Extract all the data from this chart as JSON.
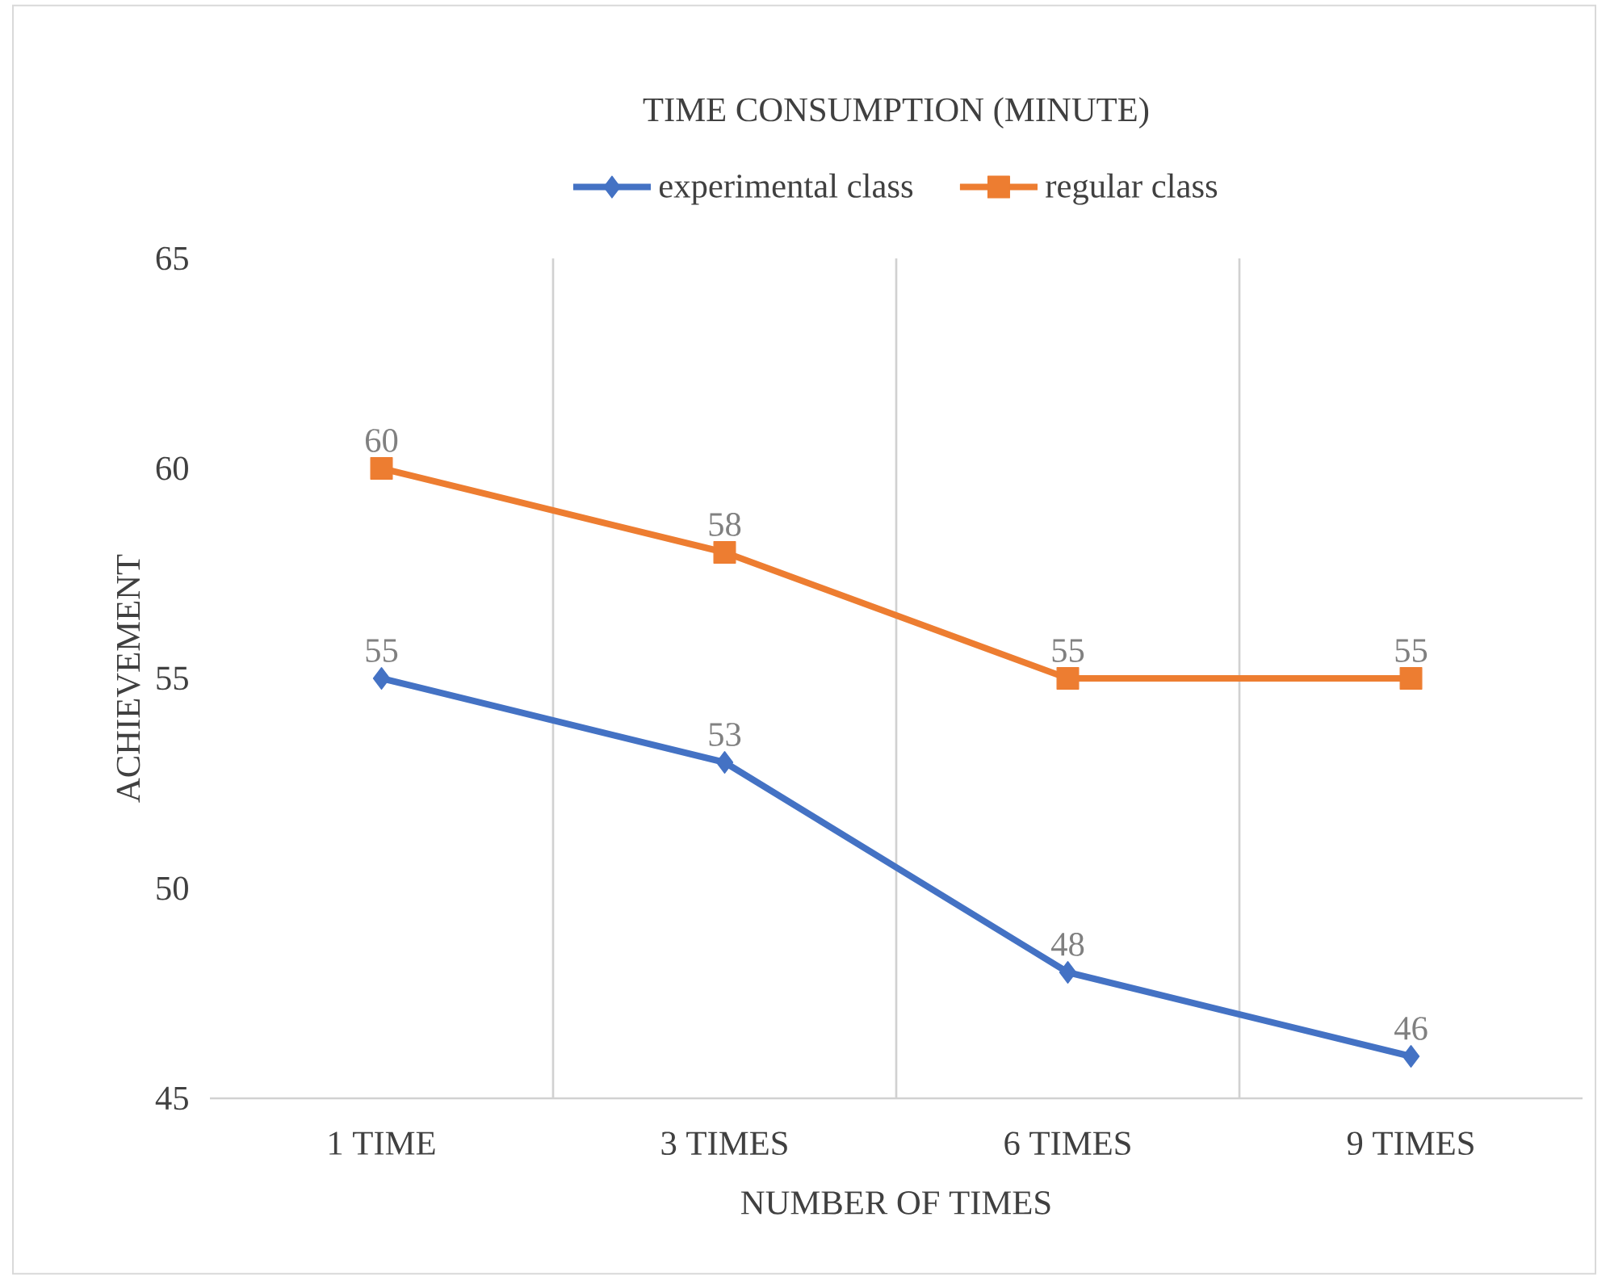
{
  "chart_data": {
    "type": "line",
    "title": "TIME CONSUMPTION (MINUTE)",
    "xlabel": "NUMBER OF TIMES",
    "ylabel": "ACHIEVEMENT",
    "categories": [
      "1 TIME",
      "3 TIMES",
      "6 TIMES",
      "9 TIMES"
    ],
    "series": [
      {
        "name": "experimental class",
        "color": "#4472c4",
        "marker": "diamond",
        "values": [
          55,
          53,
          48,
          46
        ]
      },
      {
        "name": "regular class",
        "color": "#ed7d31",
        "marker": "square",
        "values": [
          60,
          58,
          55,
          55
        ]
      }
    ],
    "ylim": [
      45,
      65
    ],
    "yticks": [
      45,
      50,
      55,
      60,
      65
    ],
    "grid": "x",
    "legend": "top",
    "data_labels": true
  }
}
